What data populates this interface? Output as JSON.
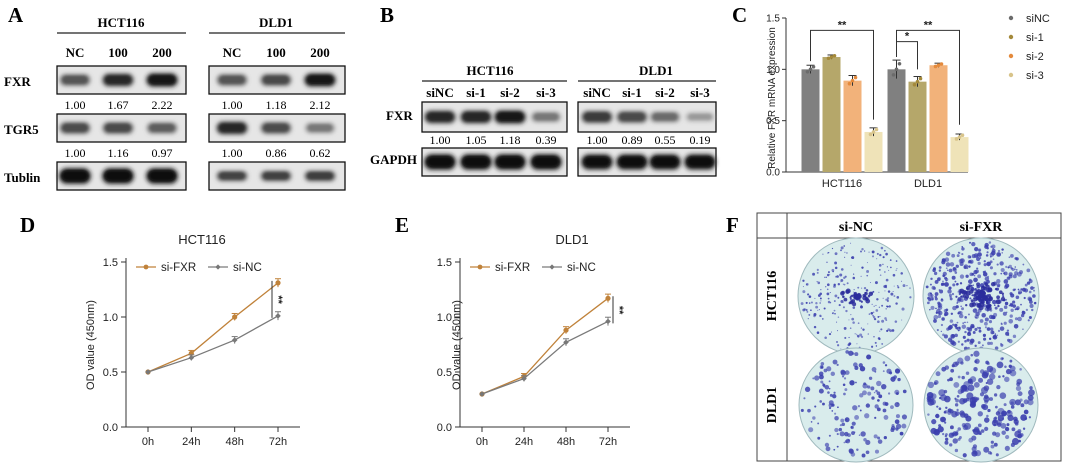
{
  "panelA": {
    "letter": "A",
    "groups": [
      {
        "name": "HCT116",
        "lanes": [
          "NC",
          "100",
          "200"
        ]
      },
      {
        "name": "DLD1",
        "lanes": [
          "NC",
          "100",
          "200"
        ]
      }
    ],
    "rows": [
      {
        "label": "FXR",
        "values": [
          [
            "1.00",
            "1.67",
            "2.22"
          ],
          [
            "1.00",
            "1.18",
            "2.12"
          ]
        ]
      },
      {
        "label": "TGR5",
        "values": [
          [
            "1.00",
            "1.16",
            "0.97"
          ],
          [
            "1.00",
            "0.86",
            "0.62"
          ]
        ]
      },
      {
        "label": "Tublin",
        "values": null
      }
    ]
  },
  "panelB": {
    "letter": "B",
    "groups": [
      {
        "name": "HCT116",
        "lanes": [
          "siNC",
          "si-1",
          "si-2",
          "si-3"
        ]
      },
      {
        "name": "DLD1",
        "lanes": [
          "siNC",
          "si-1",
          "si-2",
          "si-3"
        ]
      }
    ],
    "rows": [
      {
        "label": "FXR",
        "values": [
          [
            "1.00",
            "1.05",
            "1.18",
            "0.39"
          ],
          [
            "1.00",
            "0.89",
            "0.55",
            "0.19"
          ]
        ]
      },
      {
        "label": "GAPDH",
        "values": null
      }
    ]
  },
  "panelF": {
    "letter": "F",
    "cols": [
      "si-NC",
      "si-FXR"
    ],
    "rows": [
      "HCT116",
      "DLD1"
    ]
  },
  "colors": {
    "siNC": "#808080",
    "si1": "#b5a76a",
    "si2": "#f2b27a",
    "si3": "#efe3b8",
    "siFXR": "#c0823a",
    "crystal": "#3b3fae",
    "plate": "#d9ecec"
  },
  "chart_data": [
    {
      "panel": "C",
      "type": "bar",
      "ylabel": "Relative FXR mRNA expression",
      "categories": [
        "HCT116",
        "DLD1"
      ],
      "ylim": [
        0,
        1.5
      ],
      "yticks": [
        "0.0",
        "0.5",
        "1.0",
        "1.5"
      ],
      "legend_position": "right",
      "series": [
        {
          "name": "siNC",
          "values": [
            1.0,
            1.0
          ],
          "errors": [
            0.04,
            0.09
          ]
        },
        {
          "name": "si-1",
          "values": [
            1.12,
            0.88
          ],
          "errors": [
            0.02,
            0.05
          ]
        },
        {
          "name": "si-2",
          "values": [
            0.89,
            1.04
          ],
          "errors": [
            0.05,
            0.02
          ]
        },
        {
          "name": "si-3",
          "values": [
            0.39,
            0.34
          ],
          "errors": [
            0.04,
            0.03
          ]
        }
      ],
      "annotations": [
        {
          "group": "HCT116",
          "from": "siNC",
          "to": "si-3",
          "text": "**"
        },
        {
          "group": "DLD1",
          "from": "siNC",
          "to": "si-1",
          "text": "*"
        },
        {
          "group": "DLD1",
          "from": "siNC",
          "to": "si-3",
          "text": "**"
        }
      ]
    },
    {
      "panel": "D",
      "type": "line",
      "title": "HCT116",
      "ylabel": "OD value (450nm)",
      "x": [
        "0h",
        "24h",
        "48h",
        "72h"
      ],
      "ylim": [
        0.0,
        1.5
      ],
      "yticks": [
        "0.0",
        "0.5",
        "1.0",
        "1.5"
      ],
      "legend_position": "top-left",
      "series": [
        {
          "name": "si-FXR",
          "values": [
            0.5,
            0.67,
            1.0,
            1.31
          ]
        },
        {
          "name": "si-NC",
          "values": [
            0.5,
            0.63,
            0.79,
            1.01
          ]
        }
      ],
      "significance": "**"
    },
    {
      "panel": "E",
      "type": "line",
      "title": "DLD1",
      "ylabel": "OD value (450nm)",
      "x": [
        "0h",
        "24h",
        "48h",
        "72h"
      ],
      "ylim": [
        0.0,
        1.5
      ],
      "yticks": [
        "0.0",
        "0.5",
        "1.0",
        "1.5"
      ],
      "legend_position": "top-left",
      "series": [
        {
          "name": "si-FXR",
          "values": [
            0.3,
            0.46,
            0.88,
            1.17
          ]
        },
        {
          "name": "si-NC",
          "values": [
            0.3,
            0.44,
            0.77,
            0.96
          ]
        }
      ],
      "significance": "**"
    }
  ]
}
